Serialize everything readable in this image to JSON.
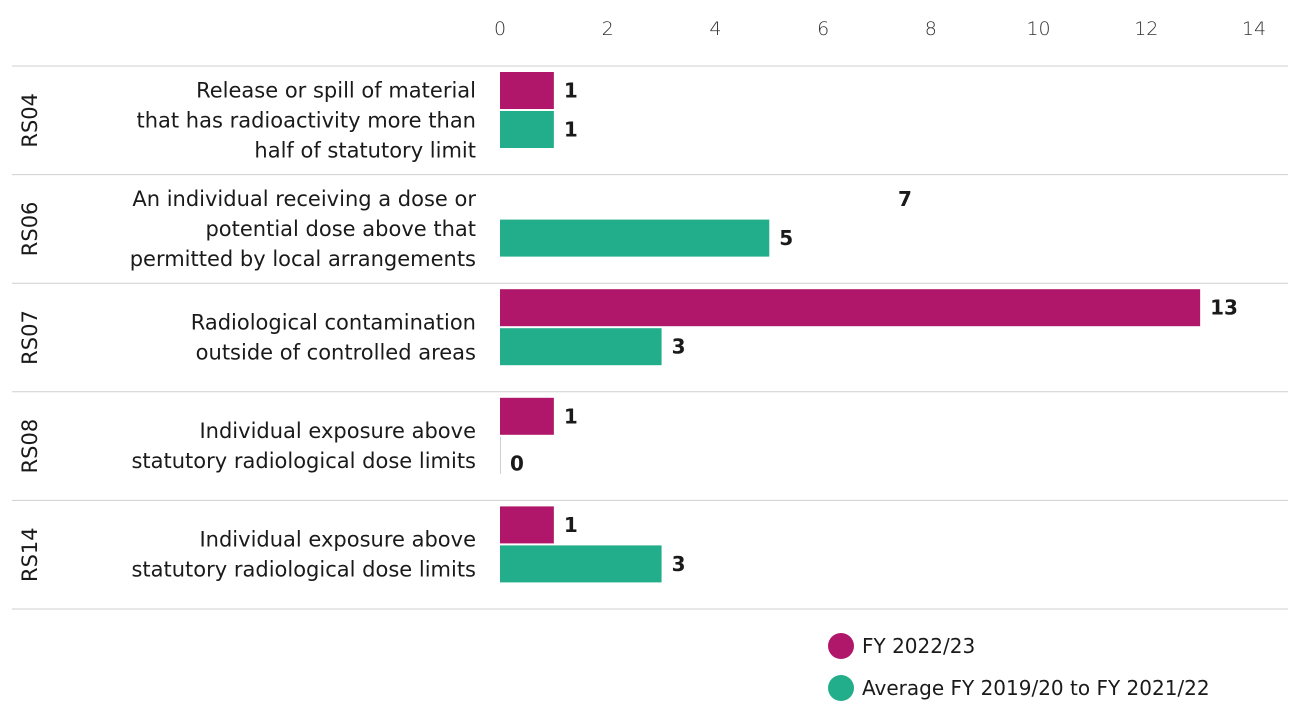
{
  "chart_data": {
    "type": "bar",
    "orientation": "horizontal",
    "xlim": [
      0,
      14
    ],
    "x_ticks": [
      0,
      2,
      4,
      6,
      8,
      10,
      12,
      14
    ],
    "grid": false,
    "legend_position": "bottom-right",
    "categories": [
      {
        "code": "RS04",
        "lines": [
          "Release or spill of material",
          "that has  radioactivity more than",
          "half of statutory limit"
        ]
      },
      {
        "code": "RS06",
        "lines": [
          "An individual receiving a dose or",
          "potential dose above that",
          "permitted by local arrangements"
        ]
      },
      {
        "code": "RS07",
        "lines": [
          "Radiological contamination",
          "outside of controlled areas"
        ]
      },
      {
        "code": "RS08",
        "lines": [
          "Individual exposure above",
          "statutory radiological dose limits"
        ]
      },
      {
        "code": "RS14",
        "lines": [
          "Individual exposure above",
          "statutory radiological dose limits"
        ]
      }
    ],
    "series": [
      {
        "name": "FY 2022/23",
        "color": "#b0176b",
        "values": [
          1,
          7,
          13,
          1,
          1
        ]
      },
      {
        "name": "Average FY 2019/20 to FY 2021/22",
        "color": "#22ae8a",
        "values": [
          1,
          5,
          3,
          0,
          3
        ]
      }
    ]
  },
  "legend": {
    "items": [
      {
        "label": "FY 2022/23",
        "color": "#b0176b"
      },
      {
        "label": "Average FY 2019/20 to FY 2021/22",
        "color": "#22ae8a"
      }
    ]
  }
}
